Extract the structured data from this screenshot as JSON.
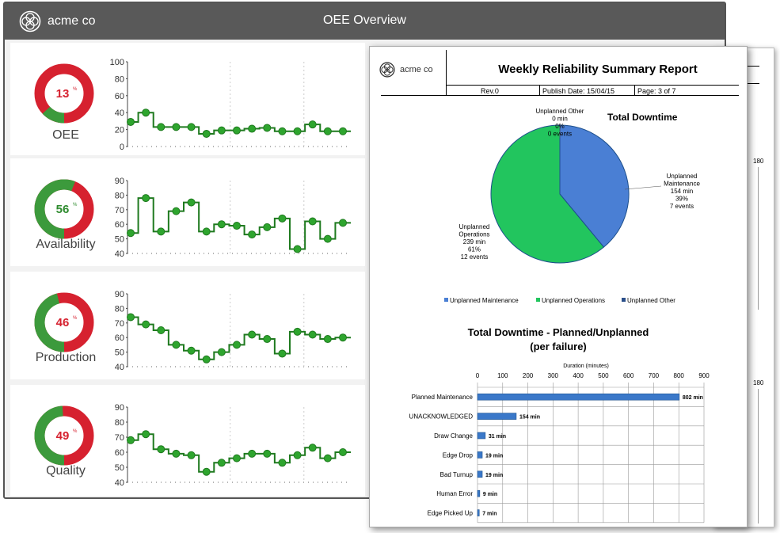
{
  "dashboard": {
    "brand": "acme co",
    "title": "OEE Overview",
    "metrics": [
      {
        "label": "OEE",
        "value": "13",
        "unit": "%",
        "percent": 13,
        "ymin": 0,
        "ymax": 100,
        "ticks": [
          0,
          20,
          40,
          60,
          80,
          100
        ],
        "points": [
          29,
          40,
          23,
          23,
          23,
          15,
          19,
          19,
          21,
          22,
          18,
          18,
          26,
          18,
          18
        ]
      },
      {
        "label": "Availability",
        "value": "56",
        "unit": "%",
        "percent": 56,
        "ymin": 40,
        "ymax": 90,
        "ticks": [
          40,
          50,
          60,
          70,
          80,
          90
        ],
        "points": [
          54,
          78,
          55,
          69,
          75,
          55,
          60,
          59,
          53,
          58,
          64,
          43,
          62,
          50,
          61
        ]
      },
      {
        "label": "Production",
        "value": "46",
        "unit": "%",
        "percent": 46,
        "ymin": 40,
        "ymax": 90,
        "ticks": [
          40,
          50,
          60,
          70,
          80,
          90
        ],
        "points": [
          74,
          69,
          65,
          55,
          51,
          45,
          50,
          55,
          62,
          59,
          49,
          64,
          62,
          59,
          60
        ]
      },
      {
        "label": "Quality",
        "value": "49",
        "unit": "%",
        "percent": 49,
        "ymin": 40,
        "ymax": 90,
        "ticks": [
          40,
          50,
          60,
          70,
          80,
          90
        ],
        "points": [
          68,
          72,
          62,
          59,
          58,
          47,
          53,
          56,
          59,
          59,
          53,
          58,
          63,
          56,
          60
        ]
      }
    ]
  },
  "report": {
    "brand": "acme co",
    "title": "Weekly Reliability Summary Report",
    "rev": "Rev.0",
    "publish_date": "Publish Date: 15/04/15",
    "page": "Page: 3 of 7",
    "back_ticks": [
      "180",
      "180"
    ]
  },
  "chart_data": [
    {
      "type": "pie",
      "title": "Total Downtime",
      "slices": [
        {
          "name": "Unplanned Maintenance",
          "minutes": 154,
          "percent": 39,
          "events": 7,
          "label_lines": [
            "Unplanned",
            "Maintenance",
            "154 min",
            "39%",
            "7 events"
          ],
          "color": "#4a7fd4"
        },
        {
          "name": "Unplanned Operations",
          "minutes": 239,
          "percent": 61,
          "events": 12,
          "label_lines": [
            "Unplanned",
            "Operations",
            "239 min",
            "61%",
            "12 events"
          ],
          "color": "#22c55e"
        },
        {
          "name": "Unplanned Other",
          "minutes": 0,
          "percent": 0,
          "events": 0,
          "label_lines": [
            "Unplanned Other",
            "0 min",
            "0%",
            "0 events"
          ],
          "color": "#2b4f8a"
        }
      ],
      "legend": [
        "Unplanned Maintenance",
        "Unplanned Operations",
        "Unplanned Other"
      ]
    },
    {
      "type": "bar",
      "title_lines": [
        "Total Downtime - Planned/Unplanned",
        "(per failure)"
      ],
      "xlabel": "Duration (minutes)",
      "xlim": [
        0,
        900
      ],
      "ticks": [
        0,
        100,
        200,
        300,
        400,
        500,
        600,
        700,
        800,
        900
      ],
      "categories": [
        "Planned Maintenance",
        "UNACKNOWLEDGED",
        "Draw Change",
        "Edge Drop",
        "Bad Turnup",
        "Human Error",
        "Edge Picked Up"
      ],
      "values": [
        802,
        154,
        31,
        19,
        19,
        9,
        7
      ],
      "value_labels": [
        "802 min",
        "154 min",
        "31 min",
        "19 min",
        "19 min",
        "9 min",
        "7 min"
      ]
    }
  ]
}
